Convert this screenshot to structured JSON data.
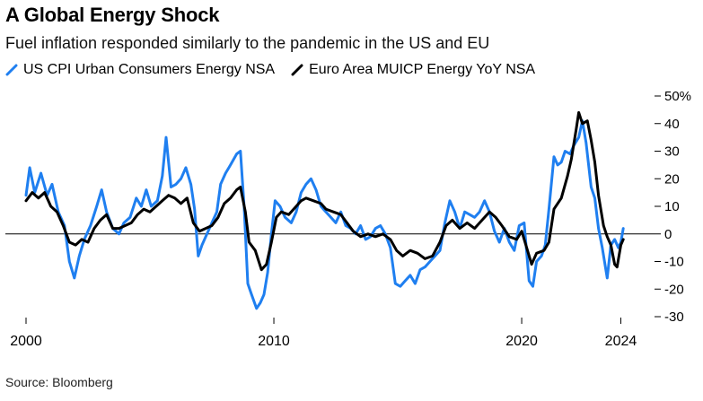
{
  "chart_data": {
    "type": "line",
    "title": "A Global Energy Shock",
    "subtitle": "Fuel inflation responded similarly to the pandemic in the US and EU",
    "source": "Source: Bloomberg",
    "ylim": [
      -30,
      50
    ],
    "yticks": [
      -30,
      -20,
      -10,
      0,
      10,
      20,
      30,
      40,
      50
    ],
    "ytick_labels": [
      "-30",
      "-20",
      "-10",
      "0",
      "10",
      "20",
      "30",
      "40",
      "50%"
    ],
    "xlim": [
      2000,
      2024.2
    ],
    "xticks": [
      2000,
      2010,
      2020,
      2024
    ],
    "xtick_labels": [
      "2000",
      "2010",
      "2020",
      "2024"
    ],
    "grid": false,
    "legend_position": "top-left",
    "series": [
      {
        "name": "US CPI Urban Consumers Energy NSA",
        "color": "#1f7ff0",
        "points": [
          [
            2000.0,
            14
          ],
          [
            2000.15,
            24
          ],
          [
            2000.35,
            15
          ],
          [
            2000.6,
            22
          ],
          [
            2000.85,
            14
          ],
          [
            2001.05,
            18
          ],
          [
            2001.3,
            8
          ],
          [
            2001.55,
            3
          ],
          [
            2001.75,
            -10
          ],
          [
            2001.95,
            -16
          ],
          [
            2002.15,
            -8
          ],
          [
            2002.35,
            -2
          ],
          [
            2002.6,
            3
          ],
          [
            2002.85,
            10
          ],
          [
            2003.05,
            16
          ],
          [
            2003.25,
            8
          ],
          [
            2003.5,
            2
          ],
          [
            2003.75,
            0
          ],
          [
            2003.95,
            4
          ],
          [
            2004.2,
            6
          ],
          [
            2004.45,
            13
          ],
          [
            2004.65,
            10
          ],
          [
            2004.85,
            16
          ],
          [
            2005.05,
            10
          ],
          [
            2005.3,
            12
          ],
          [
            2005.5,
            21
          ],
          [
            2005.65,
            35
          ],
          [
            2005.85,
            17
          ],
          [
            2006.05,
            18
          ],
          [
            2006.25,
            20
          ],
          [
            2006.45,
            24
          ],
          [
            2006.65,
            18
          ],
          [
            2006.8,
            9
          ],
          [
            2006.95,
            -8
          ],
          [
            2007.1,
            -4
          ],
          [
            2007.3,
            0
          ],
          [
            2007.5,
            4
          ],
          [
            2007.7,
            8
          ],
          [
            2007.85,
            18
          ],
          [
            2008.05,
            22
          ],
          [
            2008.25,
            25
          ],
          [
            2008.5,
            29
          ],
          [
            2008.65,
            30
          ],
          [
            2008.8,
            10
          ],
          [
            2008.95,
            -18
          ],
          [
            2009.1,
            -22
          ],
          [
            2009.3,
            -27
          ],
          [
            2009.45,
            -25
          ],
          [
            2009.6,
            -22
          ],
          [
            2009.75,
            -14
          ],
          [
            2009.9,
            0
          ],
          [
            2010.05,
            12
          ],
          [
            2010.25,
            10
          ],
          [
            2010.45,
            6
          ],
          [
            2010.7,
            4
          ],
          [
            2010.9,
            8
          ],
          [
            2011.1,
            15
          ],
          [
            2011.3,
            18
          ],
          [
            2011.5,
            20
          ],
          [
            2011.7,
            16
          ],
          [
            2011.9,
            10
          ],
          [
            2012.1,
            8
          ],
          [
            2012.3,
            6
          ],
          [
            2012.5,
            4
          ],
          [
            2012.7,
            8
          ],
          [
            2012.9,
            3
          ],
          [
            2013.1,
            2
          ],
          [
            2013.3,
            0
          ],
          [
            2013.5,
            3
          ],
          [
            2013.7,
            -2
          ],
          [
            2013.9,
            -1
          ],
          [
            2014.1,
            2
          ],
          [
            2014.3,
            3
          ],
          [
            2014.5,
            0
          ],
          [
            2014.7,
            -5
          ],
          [
            2014.9,
            -18
          ],
          [
            2015.1,
            -19
          ],
          [
            2015.3,
            -17
          ],
          [
            2015.5,
            -15
          ],
          [
            2015.7,
            -18
          ],
          [
            2015.9,
            -13
          ],
          [
            2016.1,
            -12
          ],
          [
            2016.3,
            -10
          ],
          [
            2016.5,
            -8
          ],
          [
            2016.7,
            -6
          ],
          [
            2016.9,
            4
          ],
          [
            2017.1,
            12
          ],
          [
            2017.3,
            8
          ],
          [
            2017.5,
            2
          ],
          [
            2017.7,
            8
          ],
          [
            2017.9,
            7
          ],
          [
            2018.1,
            6
          ],
          [
            2018.3,
            8
          ],
          [
            2018.5,
            12
          ],
          [
            2018.7,
            8
          ],
          [
            2018.9,
            1
          ],
          [
            2019.1,
            -3
          ],
          [
            2019.3,
            2
          ],
          [
            2019.5,
            -3
          ],
          [
            2019.7,
            -6
          ],
          [
            2019.9,
            3
          ],
          [
            2020.1,
            4
          ],
          [
            2020.3,
            -17
          ],
          [
            2020.45,
            -19
          ],
          [
            2020.6,
            -10
          ],
          [
            2020.8,
            -8
          ],
          [
            2020.95,
            -4
          ],
          [
            2021.1,
            9
          ],
          [
            2021.3,
            28
          ],
          [
            2021.45,
            25
          ],
          [
            2021.6,
            26
          ],
          [
            2021.75,
            30
          ],
          [
            2021.95,
            29
          ],
          [
            2022.1,
            32
          ],
          [
            2022.3,
            35
          ],
          [
            2022.45,
            41
          ],
          [
            2022.6,
            33
          ],
          [
            2022.8,
            17
          ],
          [
            2022.95,
            13
          ],
          [
            2023.1,
            2
          ],
          [
            2023.25,
            -5
          ],
          [
            2023.45,
            -16
          ],
          [
            2023.6,
            -4
          ],
          [
            2023.75,
            -2
          ],
          [
            2023.9,
            -5
          ],
          [
            2024.0,
            -3
          ],
          [
            2024.1,
            2
          ]
        ]
      },
      {
        "name": "Euro Area MUICP Energy YoY NSA",
        "color": "#000000",
        "points": [
          [
            2000.0,
            12
          ],
          [
            2000.25,
            15
          ],
          [
            2000.5,
            13
          ],
          [
            2000.75,
            15
          ],
          [
            2001.0,
            10
          ],
          [
            2001.25,
            8
          ],
          [
            2001.5,
            3
          ],
          [
            2001.75,
            -3
          ],
          [
            2002.0,
            -4
          ],
          [
            2002.25,
            -2
          ],
          [
            2002.5,
            -3
          ],
          [
            2002.75,
            2
          ],
          [
            2003.0,
            5
          ],
          [
            2003.25,
            7
          ],
          [
            2003.5,
            2
          ],
          [
            2003.75,
            2
          ],
          [
            2004.0,
            3
          ],
          [
            2004.25,
            4
          ],
          [
            2004.5,
            7
          ],
          [
            2004.75,
            9
          ],
          [
            2005.0,
            8
          ],
          [
            2005.25,
            10
          ],
          [
            2005.5,
            12
          ],
          [
            2005.75,
            14
          ],
          [
            2006.0,
            13
          ],
          [
            2006.25,
            11
          ],
          [
            2006.5,
            13
          ],
          [
            2006.75,
            4
          ],
          [
            2007.0,
            1
          ],
          [
            2007.25,
            2
          ],
          [
            2007.5,
            3
          ],
          [
            2007.75,
            6
          ],
          [
            2008.0,
            11
          ],
          [
            2008.25,
            13
          ],
          [
            2008.5,
            16
          ],
          [
            2008.65,
            17
          ],
          [
            2008.85,
            8
          ],
          [
            2009.0,
            -3
          ],
          [
            2009.25,
            -6
          ],
          [
            2009.5,
            -13
          ],
          [
            2009.7,
            -11
          ],
          [
            2009.9,
            -3
          ],
          [
            2010.1,
            6
          ],
          [
            2010.3,
            8
          ],
          [
            2010.6,
            7
          ],
          [
            2010.9,
            10
          ],
          [
            2011.1,
            12
          ],
          [
            2011.3,
            13
          ],
          [
            2011.6,
            12
          ],
          [
            2011.9,
            11
          ],
          [
            2012.1,
            9
          ],
          [
            2012.4,
            8
          ],
          [
            2012.7,
            7
          ],
          [
            2012.95,
            4
          ],
          [
            2013.2,
            1
          ],
          [
            2013.5,
            -1
          ],
          [
            2013.8,
            0
          ],
          [
            2014.1,
            -1
          ],
          [
            2014.4,
            0
          ],
          [
            2014.7,
            -2
          ],
          [
            2014.95,
            -6
          ],
          [
            2015.2,
            -8
          ],
          [
            2015.5,
            -6
          ],
          [
            2015.8,
            -7
          ],
          [
            2016.1,
            -9
          ],
          [
            2016.4,
            -8
          ],
          [
            2016.7,
            -3
          ],
          [
            2016.95,
            3
          ],
          [
            2017.2,
            5
          ],
          [
            2017.5,
            2
          ],
          [
            2017.8,
            4
          ],
          [
            2018.1,
            2
          ],
          [
            2018.4,
            5
          ],
          [
            2018.7,
            8
          ],
          [
            2018.95,
            6
          ],
          [
            2019.2,
            3
          ],
          [
            2019.5,
            -1
          ],
          [
            2019.8,
            -2
          ],
          [
            2020.0,
            1
          ],
          [
            2020.2,
            -5
          ],
          [
            2020.4,
            -11
          ],
          [
            2020.6,
            -7
          ],
          [
            2020.9,
            -6
          ],
          [
            2021.1,
            -3
          ],
          [
            2021.3,
            9
          ],
          [
            2021.6,
            13
          ],
          [
            2021.85,
            21
          ],
          [
            2022.0,
            27
          ],
          [
            2022.2,
            38
          ],
          [
            2022.3,
            44
          ],
          [
            2022.45,
            40
          ],
          [
            2022.65,
            41
          ],
          [
            2022.8,
            34
          ],
          [
            2022.95,
            26
          ],
          [
            2023.1,
            14
          ],
          [
            2023.3,
            3
          ],
          [
            2023.45,
            -1
          ],
          [
            2023.6,
            -4
          ],
          [
            2023.75,
            -11
          ],
          [
            2023.85,
            -12
          ],
          [
            2024.0,
            -4
          ],
          [
            2024.1,
            -2
          ]
        ]
      }
    ]
  }
}
